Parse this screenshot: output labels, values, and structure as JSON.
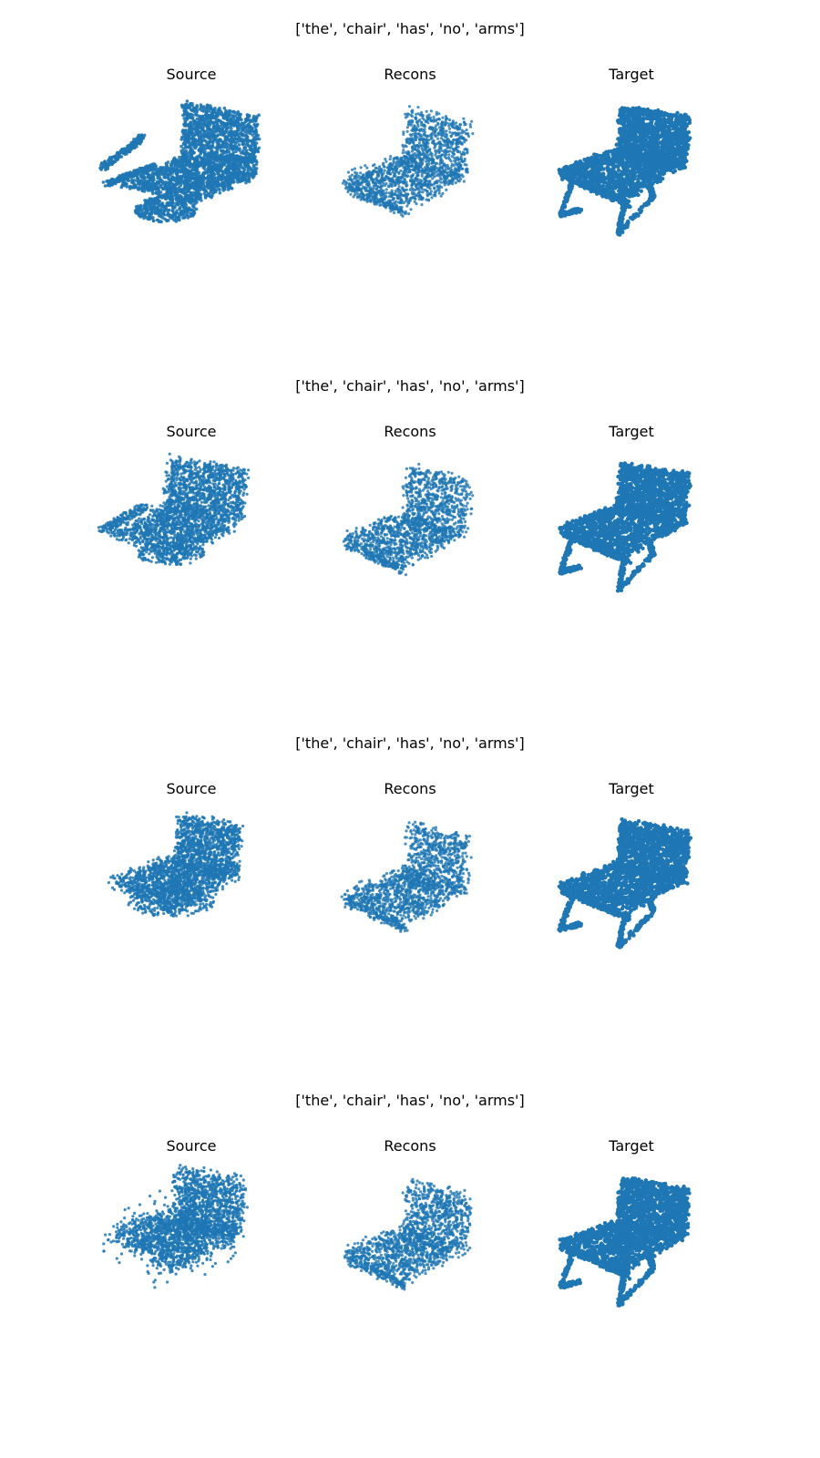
{
  "figure": {
    "point_color": "#1f77b4",
    "rows": [
      {
        "suptitle": "['the', 'chair', 'has', 'no', 'arms']",
        "panels": [
          {
            "title": "Source",
            "shape": "armchair-with-round-base"
          },
          {
            "title": "Recons",
            "shape": "sparse-chair"
          },
          {
            "title": "Target",
            "shape": "chair-sled-legs"
          }
        ]
      },
      {
        "suptitle": "['the', 'chair', 'has', 'no', 'arms']",
        "panels": [
          {
            "title": "Source",
            "shape": "noisy-armchair"
          },
          {
            "title": "Recons",
            "shape": "sparse-chair"
          },
          {
            "title": "Target",
            "shape": "chair-sled-legs"
          }
        ]
      },
      {
        "suptitle": "['the', 'chair', 'has', 'no', 'arms']",
        "panels": [
          {
            "title": "Source",
            "shape": "blob-chair"
          },
          {
            "title": "Recons",
            "shape": "sparse-chair"
          },
          {
            "title": "Target",
            "shape": "chair-sled-legs"
          }
        ]
      },
      {
        "suptitle": "['the', 'chair', 'has', 'no', 'arms']",
        "panels": [
          {
            "title": "Source",
            "shape": "noisy-blob"
          },
          {
            "title": "Recons",
            "shape": "sparse-chair"
          },
          {
            "title": "Target",
            "shape": "chair-sled-legs"
          }
        ]
      }
    ]
  }
}
